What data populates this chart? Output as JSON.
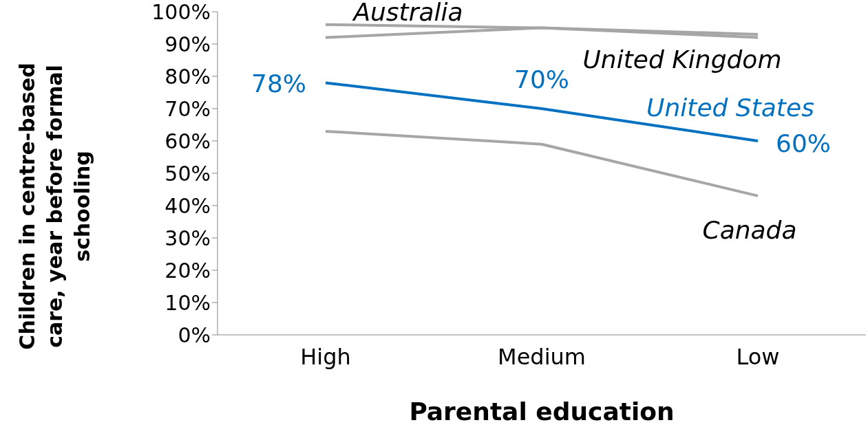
{
  "chart_data": {
    "type": "line",
    "xlabel": "Parental education",
    "ylabel": "Children in centre-based care, year before formal schooling",
    "categories": [
      "High",
      "Medium",
      "Low"
    ],
    "series": [
      {
        "name": "Australia",
        "color": "#a6a6a6",
        "values": [
          96,
          95,
          93
        ]
      },
      {
        "name": "United Kingdom",
        "color": "#a6a6a6",
        "values": [
          92,
          95,
          92
        ]
      },
      {
        "name": "Canada",
        "color": "#a6a6a6",
        "values": [
          63,
          59,
          43
        ]
      },
      {
        "name": "United States",
        "color": "#0070c0",
        "values": [
          78,
          70,
          60
        ],
        "value_labels": [
          "78%",
          "70%",
          "60%"
        ]
      }
    ],
    "ylim": [
      0,
      100
    ],
    "yticks": [
      {
        "value": 0,
        "label": "0%"
      },
      {
        "value": 10,
        "label": "10%"
      },
      {
        "value": 20,
        "label": "20%"
      },
      {
        "value": 30,
        "label": "30%"
      },
      {
        "value": 40,
        "label": "40%"
      },
      {
        "value": 50,
        "label": "50%"
      },
      {
        "value": 60,
        "label": "60%"
      },
      {
        "value": 70,
        "label": "70%"
      },
      {
        "value": 80,
        "label": "80%"
      },
      {
        "value": 90,
        "label": "90%"
      },
      {
        "value": 100,
        "label": "100%"
      }
    ],
    "grid": false,
    "legend": false,
    "marker": "none",
    "line_style": "solid"
  }
}
